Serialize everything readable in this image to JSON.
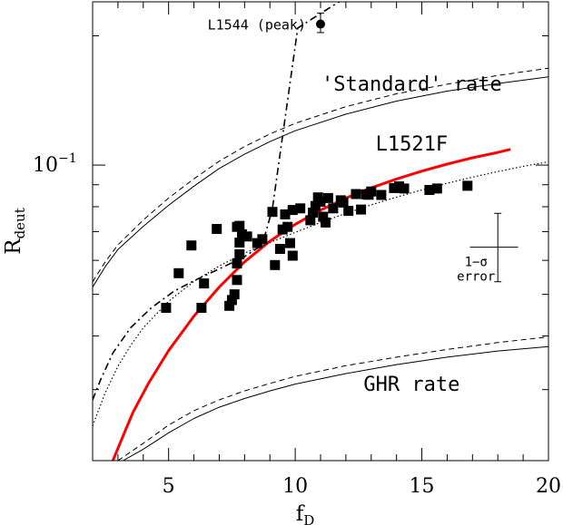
{
  "chart_data": {
    "type": "scatter",
    "xlabel": "f",
    "xlabel_sub": "D",
    "ylabel": "R",
    "ylabel_sub": "deut",
    "xlim": [
      2,
      20
    ],
    "ylim": [
      0.0205,
      0.24
    ],
    "y_scale": "log",
    "x_ticks_major": [
      5,
      10,
      15,
      20
    ],
    "x_ticks_minor": [
      3,
      4,
      6,
      7,
      8,
      9,
      11,
      12,
      13,
      14,
      16,
      17,
      18,
      19
    ],
    "y_ticks_major": [
      {
        "value": 0.1,
        "base": "10",
        "exp": "−1"
      }
    ],
    "y_ticks_minor": [
      0.03,
      0.04,
      0.05,
      0.06,
      0.07,
      0.08,
      0.09,
      0.2
    ],
    "grid": false,
    "series": [
      {
        "name": "L1521F",
        "kind": "points",
        "color": "#000000",
        "x": [
          4.9,
          5.4,
          5.9,
          6.4,
          6.3,
          6.9,
          7.4,
          7.5,
          7.6,
          7.7,
          7.7,
          7.8,
          7.8,
          7.9,
          7.7,
          7.8,
          8.1,
          8.5,
          8.7,
          9.1,
          9.2,
          9.4,
          9.5,
          9.7,
          9.6,
          9.9,
          9.8,
          9.9,
          10.2,
          10.6,
          10.7,
          10.8,
          10.9,
          11.0,
          11.1,
          11.2,
          11.3,
          11.5,
          11.8,
          11.9,
          12.1,
          12.4,
          12.6,
          12.8,
          12.9,
          13.0,
          13.4,
          13.9,
          14.1,
          14.3,
          15.3,
          15.6,
          16.8
        ],
        "y": [
          0.0465,
          0.056,
          0.065,
          0.053,
          0.0465,
          0.071,
          0.047,
          0.0485,
          0.05,
          0.054,
          0.059,
          0.062,
          0.066,
          0.069,
          0.0718,
          0.0722,
          0.0682,
          0.0658,
          0.0672,
          0.0778,
          0.0585,
          0.0638,
          0.0708,
          0.0718,
          0.0768,
          0.0615,
          0.0658,
          0.0786,
          0.0793,
          0.0744,
          0.0775,
          0.0803,
          0.0841,
          0.0822,
          0.0758,
          0.0735,
          0.0838,
          0.0793,
          0.0828,
          0.0818,
          0.0782,
          0.0856,
          0.0788,
          0.0855,
          0.0853,
          0.0868,
          0.0852,
          0.0884,
          0.0892,
          0.0882,
          0.0875,
          0.0882,
          0.0895
        ]
      },
      {
        "kind": "line",
        "color": "#ff0000",
        "width": 3,
        "dash": "",
        "x": [
          2.8,
          3.2,
          3.6,
          4.2,
          5,
          6,
          7,
          8,
          9,
          10,
          11,
          12,
          13,
          14,
          15,
          16,
          17,
          18,
          18.5
        ],
        "y": [
          0.0205,
          0.0234,
          0.0266,
          0.031,
          0.037,
          0.0445,
          0.052,
          0.0595,
          0.0665,
          0.0728,
          0.0785,
          0.0838,
          0.0885,
          0.0928,
          0.0968,
          0.1005,
          0.104,
          0.107,
          0.1088
        ]
      },
      {
        "kind": "line",
        "color": "#000000",
        "width": 1.2,
        "dash": "1.5,2.5",
        "x": [
          2,
          2.5,
          3,
          3.5,
          4,
          5,
          6,
          7,
          8,
          9,
          10,
          11,
          12,
          13,
          14,
          15,
          16,
          17,
          18,
          19,
          20
        ],
        "y": [
          0.0247,
          0.0295,
          0.034,
          0.038,
          0.0418,
          0.0482,
          0.0536,
          0.0582,
          0.0624,
          0.066,
          0.0697,
          0.0735,
          0.0772,
          0.0808,
          0.0842,
          0.0875,
          0.0907,
          0.0937,
          0.0966,
          0.0993,
          0.1018
        ]
      },
      {
        "kind": "line",
        "color": "#000000",
        "width": 1.6,
        "dash": "8,4,2,4",
        "x": [
          2,
          2.3,
          2.8,
          3.5,
          4.3,
          5.2,
          6,
          7,
          8,
          8.7,
          9.1,
          10.1,
          12.2
        ],
        "y": [
          0.0284,
          0.0315,
          0.0365,
          0.0418,
          0.0464,
          0.0508,
          0.0538,
          0.0573,
          0.0612,
          0.0652,
          0.0792,
          0.2085,
          0.25
        ]
      },
      {
        "kind": "line",
        "color": "#000000",
        "width": 1,
        "dash": "",
        "x": [
          2,
          2.5,
          3,
          4,
          5,
          6,
          7,
          8,
          9,
          10,
          12,
          14,
          16,
          18,
          20
        ],
        "y": [
          0.052,
          0.058,
          0.0636,
          0.072,
          0.0806,
          0.0893,
          0.0982,
          0.106,
          0.1134,
          0.1202,
          0.1314,
          0.1409,
          0.1487,
          0.1549,
          0.1605
        ]
      },
      {
        "kind": "line",
        "color": "#000000",
        "width": 1,
        "dash": "6,4",
        "x": [
          2,
          2.5,
          3,
          4,
          5,
          6,
          7,
          8,
          9,
          10,
          12,
          14,
          16,
          18,
          20
        ],
        "y": [
          0.0535,
          0.0595,
          0.0652,
          0.0745,
          0.0838,
          0.0929,
          0.1021,
          0.1104,
          0.1181,
          0.1251,
          0.1368,
          0.1466,
          0.1543,
          0.1617,
          0.1681
        ]
      },
      {
        "kind": "line",
        "color": "#000000",
        "width": 1,
        "dash": "",
        "x": [
          3.2,
          4,
          5,
          6,
          7,
          8,
          9,
          10,
          12,
          14,
          16,
          18,
          20
        ],
        "y": [
          0.0205,
          0.0218,
          0.0238,
          0.0257,
          0.0273,
          0.0286,
          0.0298,
          0.0309,
          0.0327,
          0.0343,
          0.0357,
          0.0369,
          0.0378
        ]
      },
      {
        "kind": "line",
        "color": "#000000",
        "width": 1,
        "dash": "6,4",
        "x": [
          3.0,
          4,
          5,
          6,
          7,
          8,
          9,
          10,
          12,
          14,
          16,
          18,
          20
        ],
        "y": [
          0.0205,
          0.0225,
          0.0248,
          0.0268,
          0.0284,
          0.0298,
          0.031,
          0.0322,
          0.0341,
          0.0357,
          0.0372,
          0.0386,
          0.0398
        ]
      }
    ],
    "l1544_point": {
      "label": "L1544 (peak)",
      "x": 11.0,
      "y": 0.213,
      "yerr_low": 0.2035,
      "yerr_high": 0.226
    },
    "error_bar": {
      "label_line1": "1−σ",
      "label_line2": "error",
      "x": 18.0,
      "y": 0.0644,
      "x_low": 16.9,
      "x_high": 18.8,
      "y_low": 0.0535,
      "y_high": 0.0772
    },
    "annotations": [
      {
        "text": "'Standard' rate",
        "x": 14.6,
        "y": 0.149
      },
      {
        "text": "L1521F",
        "x": 14.6,
        "y": 0.108
      },
      {
        "text": "GHR rate",
        "x": 14.6,
        "y": 0.0298
      }
    ]
  }
}
